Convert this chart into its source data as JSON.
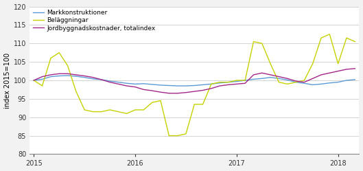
{
  "markkonstruktioner": [
    100.0,
    100.3,
    101.0,
    101.2,
    101.3,
    101.1,
    100.8,
    100.4,
    100.2,
    99.8,
    99.5,
    99.2,
    99.0,
    99.1,
    98.9,
    98.7,
    98.6,
    98.5,
    98.5,
    98.6,
    98.8,
    99.0,
    99.3,
    99.5,
    99.7,
    100.0,
    100.3,
    100.5,
    100.8,
    100.5,
    100.1,
    99.5,
    99.2,
    98.8,
    99.0,
    99.3,
    99.5,
    100.0,
    100.2
  ],
  "belaggningar": [
    100.0,
    98.5,
    106.0,
    107.5,
    104.0,
    97.0,
    92.0,
    91.5,
    91.5,
    92.0,
    91.5,
    91.0,
    92.0,
    92.0,
    94.0,
    94.5,
    85.0,
    85.0,
    85.5,
    93.5,
    93.5,
    99.0,
    99.5,
    99.5,
    100.0,
    100.0,
    110.5,
    110.0,
    104.5,
    99.5,
    99.0,
    99.5,
    100.0,
    104.5,
    111.5,
    112.5,
    104.5,
    111.5,
    110.5
  ],
  "totalindex": [
    100.0,
    101.0,
    101.5,
    101.8,
    101.8,
    101.5,
    101.2,
    100.8,
    100.2,
    99.5,
    99.0,
    98.5,
    98.2,
    97.5,
    97.2,
    96.8,
    96.5,
    96.5,
    96.7,
    97.0,
    97.3,
    97.8,
    98.5,
    98.8,
    99.0,
    99.2,
    101.5,
    102.0,
    101.5,
    101.0,
    100.5,
    99.8,
    99.5,
    100.5,
    101.5,
    102.0,
    102.5,
    103.0,
    103.2
  ],
  "n_points": 39,
  "ylim": [
    80,
    120
  ],
  "yticks": [
    80,
    85,
    90,
    95,
    100,
    105,
    110,
    115,
    120
  ],
  "ylabel": "index 2015=100",
  "color_mark": "#5b9bd5",
  "color_bel": "#c5d200",
  "color_total": "#a32688",
  "legend_labels": [
    "Markkonstruktioner",
    "Beläggningar",
    "Jordbyggnadskostnader, totalindex"
  ],
  "background_color": "#f2f2f2",
  "plot_bg": "#ffffff",
  "grid_color": "#cccccc",
  "linewidth": 1.0,
  "tick_year_indices": [
    0,
    12,
    24,
    36
  ],
  "tick_year_labels": [
    "2015",
    "2016",
    "2017",
    "2018"
  ]
}
